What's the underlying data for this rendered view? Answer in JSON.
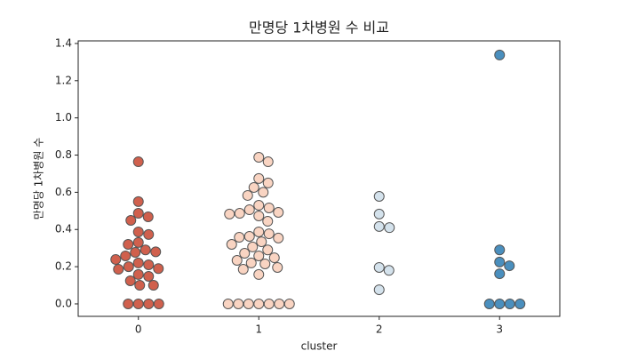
{
  "chart_data": {
    "type": "swarm",
    "title": "만명당 1차병원 수 비교",
    "x_label": "cluster",
    "y_label": "만명당 1차병원 수",
    "categories": [
      "0",
      "1",
      "2",
      "3"
    ],
    "colors": [
      "#d0604d",
      "#f9d4c2",
      "#d4e2ec",
      "#4a8fbe"
    ],
    "edge_color": "#555555",
    "values": [
      [
        0.764,
        0.55,
        0.487,
        0.468,
        0.449,
        0.387,
        0.373,
        0.33,
        0.32,
        0.29,
        0.28,
        0.277,
        0.258,
        0.239,
        0.22,
        0.21,
        0.2,
        0.19,
        0.186,
        0.158,
        0.148,
        0.124,
        0.1,
        0.1,
        0,
        0,
        0,
        0
      ],
      [
        0.788,
        0.764,
        0.674,
        0.65,
        0.626,
        0.6,
        0.583,
        0.53,
        0.516,
        0.506,
        0.492,
        0.487,
        0.483,
        0.473,
        0.444,
        0.387,
        0.377,
        0.363,
        0.358,
        0.354,
        0.334,
        0.32,
        0.306,
        0.29,
        0.272,
        0.258,
        0.248,
        0.234,
        0.22,
        0.215,
        0.196,
        0.186,
        0.158,
        0,
        0,
        0,
        0,
        0,
        0,
        0
      ],
      [
        0.578,
        0.483,
        0.416,
        0.41,
        0.196,
        0.18,
        0.076
      ],
      [
        1.338,
        0.29,
        0.225,
        0.205,
        0.162,
        0,
        0,
        0,
        0
      ]
    ],
    "ylim": [
      -0.067,
      1.414
    ],
    "yticks": [
      {
        "value": 0,
        "label": "0.0"
      },
      0.2,
      0.4,
      0.6,
      0.8,
      {
        "value": 1,
        "label": "1.0"
      },
      1.2,
      1.4
    ]
  }
}
